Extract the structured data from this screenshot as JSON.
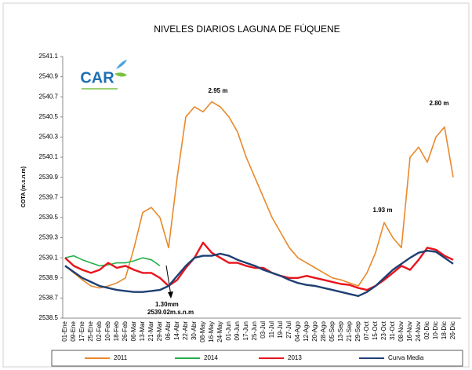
{
  "chart_data": {
    "type": "line",
    "title": "NIVELES DIARIOS LAGUNA DE FÚQUENE",
    "y_label": "COTA (m.s.n.m)",
    "logo_text": "CAR",
    "categories": [
      "01-Ene",
      "09-Ene",
      "17-Ene",
      "25-Ene",
      "02-Feb",
      "10-Feb",
      "18-Feb",
      "26-Feb",
      "06-Mar",
      "13-Mar",
      "21-Mar",
      "29-Mar",
      "06-Abr",
      "14-Abr",
      "22-Abr",
      "30-Abr",
      "08-May",
      "16-May",
      "24-May",
      "01-Jun",
      "09-Jun",
      "17-Jun",
      "25-Jun",
      "03-Jul",
      "11-Jul",
      "19-Jul",
      "27-Jul",
      "04-Ago",
      "12-Ago",
      "20-Ago",
      "28-Ago",
      "05-Sep",
      "13-Sep",
      "21-Sep",
      "29-Sep",
      "07-Oct",
      "15-Oct",
      "23-Oct",
      "31-Oct",
      "08-Nov",
      "16-Nov",
      "24-Nov",
      "02-Dic",
      "10-Dic",
      "18-Dic",
      "26-Dic"
    ],
    "series": [
      {
        "name": "2011",
        "color": "#e8892a",
        "values": [
          2539.02,
          2538.95,
          2538.88,
          2538.82,
          2538.8,
          2538.82,
          2538.85,
          2538.9,
          2539.2,
          2539.55,
          2539.6,
          2539.5,
          2539.2,
          2539.9,
          2540.5,
          2540.6,
          2540.55,
          2540.65,
          2540.6,
          2540.5,
          2540.35,
          2540.1,
          2539.9,
          2539.7,
          2539.5,
          2539.35,
          2539.2,
          2539.1,
          2539.05,
          2539.0,
          2538.95,
          2538.9,
          2538.88,
          2538.85,
          2538.82,
          2538.95,
          2539.15,
          2539.45,
          2539.3,
          2539.2,
          2540.1,
          2540.2,
          2540.05,
          2540.3,
          2540.4,
          2539.9
        ]
      },
      {
        "name": "2014",
        "color": "#22b04b",
        "values": [
          2539.1,
          2539.12,
          2539.08,
          2539.05,
          2539.02,
          2539.03,
          2539.05,
          2539.05,
          2539.07,
          2539.1,
          2539.08,
          2539.02,
          null,
          null,
          null,
          null,
          null,
          null,
          null,
          null,
          null,
          null,
          null,
          null,
          null,
          null,
          null,
          null,
          null,
          null,
          null,
          null,
          null,
          null,
          null,
          null,
          null,
          null,
          null,
          null,
          null,
          null,
          null,
          null,
          null,
          null
        ]
      },
      {
        "name": "2013",
        "color": "#e8141c",
        "values": [
          2539.1,
          2539.02,
          2538.98,
          2538.95,
          2538.98,
          2539.05,
          2539.0,
          2539.02,
          2538.98,
          2538.95,
          2538.95,
          2538.9,
          2538.82,
          2538.88,
          2539.0,
          2539.1,
          2539.25,
          2539.15,
          2539.1,
          2539.05,
          2539.05,
          2539.02,
          2539.0,
          2539.0,
          2538.95,
          2538.92,
          2538.9,
          2538.9,
          2538.92,
          2538.9,
          2538.88,
          2538.86,
          2538.84,
          2538.83,
          2538.8,
          2538.78,
          2538.82,
          2538.88,
          2538.95,
          2539.02,
          2538.98,
          2539.08,
          2539.2,
          2539.18,
          2539.12,
          2539.08
        ]
      },
      {
        "name": "Curva Media",
        "color": "#1f3f73",
        "values": [
          2539.02,
          2538.96,
          2538.9,
          2538.86,
          2538.82,
          2538.8,
          2538.78,
          2538.77,
          2538.76,
          2538.76,
          2538.77,
          2538.78,
          2538.82,
          2538.92,
          2539.02,
          2539.1,
          2539.12,
          2539.12,
          2539.14,
          2539.12,
          2539.08,
          2539.05,
          2539.02,
          2538.98,
          2538.95,
          2538.92,
          2538.88,
          2538.85,
          2538.83,
          2538.82,
          2538.8,
          2538.78,
          2538.76,
          2538.74,
          2538.72,
          2538.76,
          2538.82,
          2538.9,
          2538.98,
          2539.04,
          2539.1,
          2539.15,
          2539.17,
          2539.16,
          2539.1,
          2539.04
        ]
      }
    ],
    "ylim": [
      2538.5,
      2541.1
    ],
    "yticks": [
      2538.5,
      2538.7,
      2538.9,
      2539.1,
      2539.3,
      2539.5,
      2539.7,
      2539.9,
      2540.1,
      2540.3,
      2540.5,
      2540.7,
      2540.9,
      2541.1
    ],
    "grid": false,
    "legend": "bottom",
    "annotations": [
      "2.95 m",
      "2.80 m",
      "1.93 m",
      "1.30mm",
      "2539.02m.s.n.m"
    ]
  }
}
